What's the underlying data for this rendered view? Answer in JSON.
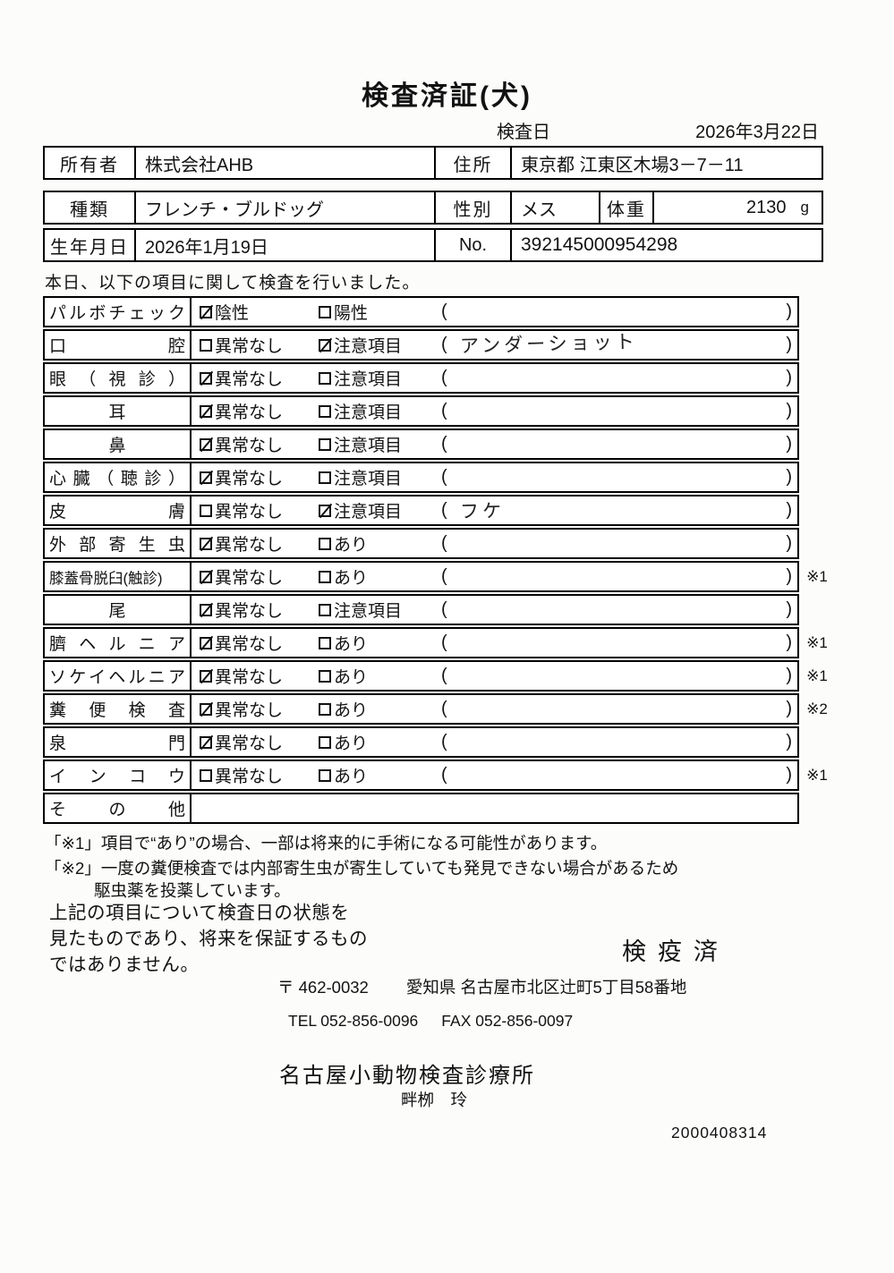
{
  "title": "検査済証(犬)",
  "header": {
    "date_label": "検査日",
    "date_value": "2026年3月22日"
  },
  "owner": {
    "owner_label": "所有者",
    "owner_value": "株式会社AHB",
    "address_label": "住所",
    "address_value": "東京都 江東区木場3－7－11"
  },
  "pet": {
    "breed_label": "種類",
    "breed_value": "フレンチ・ブルドッグ",
    "sex_label": "性別",
    "sex_value": "メス",
    "weight_label": "体重",
    "weight_value": "2130",
    "weight_unit": "g",
    "birth_label": "生年月日",
    "birth_value": "2026年1月19日",
    "no_label": "No.",
    "no_value": "392145000954298"
  },
  "checklist": {
    "intro": "本日、以下の項目に関して検査を行いました。",
    "rows": [
      {
        "label": "パルボチェック",
        "opt1": "陰性",
        "opt1_checked": true,
        "opt2": "陽性",
        "opt2_checked": false,
        "note": "",
        "mark": ""
      },
      {
        "label": "口腔",
        "opt1": "異常なし",
        "opt1_checked": false,
        "opt2": "注意項目",
        "opt2_checked": true,
        "note": "アンダーショット",
        "mark": ""
      },
      {
        "label": "眼（視診）",
        "opt1": "異常なし",
        "opt1_checked": true,
        "opt2": "注意項目",
        "opt2_checked": false,
        "note": "",
        "mark": ""
      },
      {
        "label": "耳",
        "opt1": "異常なし",
        "opt1_checked": true,
        "opt2": "注意項目",
        "opt2_checked": false,
        "note": "",
        "mark": ""
      },
      {
        "label": "鼻",
        "opt1": "異常なし",
        "opt1_checked": true,
        "opt2": "注意項目",
        "opt2_checked": false,
        "note": "",
        "mark": ""
      },
      {
        "label": "心臓（聴診）",
        "opt1": "異常なし",
        "opt1_checked": true,
        "opt2": "注意項目",
        "opt2_checked": false,
        "note": "",
        "mark": ""
      },
      {
        "label": "皮膚",
        "opt1": "異常なし",
        "opt1_checked": false,
        "opt2": "注意項目",
        "opt2_checked": true,
        "note": "フケ",
        "mark": ""
      },
      {
        "label": "外部寄生虫",
        "opt1": "異常なし",
        "opt1_checked": true,
        "opt2": "あり",
        "opt2_checked": false,
        "note": "",
        "mark": ""
      },
      {
        "label": "膝蓋骨脱臼(触診)",
        "opt1": "異常なし",
        "opt1_checked": true,
        "opt2": "あり",
        "opt2_checked": false,
        "note": "",
        "mark": "※1"
      },
      {
        "label": "尾",
        "opt1": "異常なし",
        "opt1_checked": true,
        "opt2": "注意項目",
        "opt2_checked": false,
        "note": "",
        "mark": ""
      },
      {
        "label": "臍ヘルニア",
        "opt1": "異常なし",
        "opt1_checked": true,
        "opt2": "あり",
        "opt2_checked": false,
        "note": "",
        "mark": "※1"
      },
      {
        "label": "ソケイヘルニア",
        "opt1": "異常なし",
        "opt1_checked": true,
        "opt2": "あり",
        "opt2_checked": false,
        "note": "",
        "mark": "※1"
      },
      {
        "label": "糞便検査",
        "opt1": "異常なし",
        "opt1_checked": true,
        "opt2": "あり",
        "opt2_checked": false,
        "note": "",
        "mark": "※2"
      },
      {
        "label": "泉門",
        "opt1": "異常なし",
        "opt1_checked": true,
        "opt2": "あり",
        "opt2_checked": false,
        "note": "",
        "mark": ""
      },
      {
        "label": "インコウ",
        "opt1": "異常なし",
        "opt1_checked": false,
        "opt2": "あり",
        "opt2_checked": false,
        "note": "",
        "mark": "※1"
      },
      {
        "label": "その他",
        "opt1": "",
        "opt1_checked": false,
        "opt2": "",
        "opt2_checked": false,
        "note": "",
        "mark": ""
      }
    ]
  },
  "notes": {
    "note1": "「※1」項目で“あり”の場合、一部は将来的に手術になる可能性があります。",
    "note2_line1": "「※2」一度の糞便検査では内部寄生虫が寄生していても発見できない場合があるため",
    "note2_line2": "駆虫薬を投薬しています。"
  },
  "footer": {
    "disclaimer_line1": "上記の項目について検査日の状態を",
    "disclaimer_line2": "見たものであり、将来を保証するもの",
    "disclaimer_line3": "ではありません。",
    "stamp": "検疫済",
    "postal": "〒 462-0032",
    "address": "愛知県 名古屋市北区辻町5丁目58番地",
    "tel": "TEL 052-856-0096",
    "fax": "FAX 052-856-0097",
    "clinic_name": "名古屋小動物検査診療所",
    "vet_name": "畔栁　玲",
    "serial": "2000408314"
  }
}
